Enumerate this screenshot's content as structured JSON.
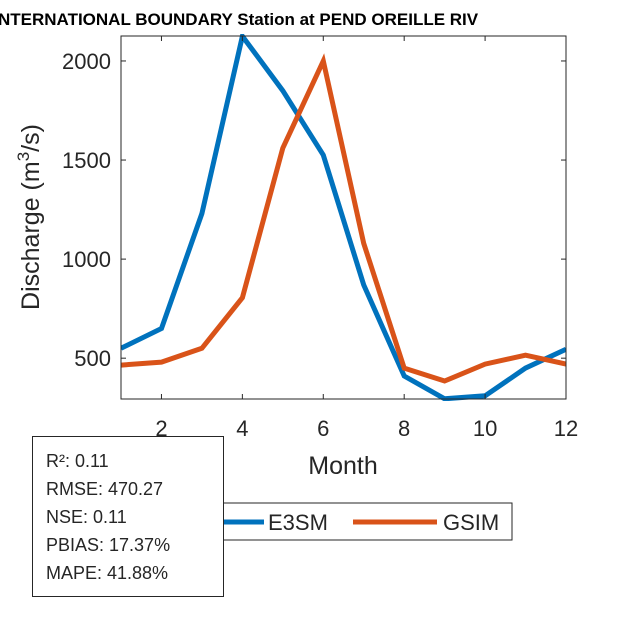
{
  "chart_data": {
    "type": "line",
    "title": "NTERNATIONAL BOUNDARY  Station at  PEND OREILLE RIV",
    "xlabel": "Month",
    "ylabel_main": "Discharge (m",
    "ylabel_sup": "3",
    "ylabel_tail": "/s)",
    "xlim": [
      1,
      12
    ],
    "ylim": [
      294,
      2126
    ],
    "xticks": [
      2,
      4,
      6,
      8,
      10,
      12
    ],
    "xtick_labels": [
      "2",
      "4",
      "6",
      "8",
      "10",
      "12"
    ],
    "yticks": [
      500,
      1000,
      1500,
      2000
    ],
    "ytick_labels": [
      "500",
      "1000",
      "1500",
      "2000"
    ],
    "x": [
      1,
      2,
      3,
      4,
      5,
      6,
      7,
      8,
      9,
      10,
      11,
      12
    ],
    "series": [
      {
        "name": "E3SM",
        "color": "#0072BD",
        "values": [
          550,
          650,
          1230,
          2125,
          1850,
          1525,
          870,
          410,
          295,
          310,
          450,
          545
        ]
      },
      {
        "name": "GSIM",
        "color": "#D95319",
        "values": [
          465,
          480,
          550,
          805,
          1560,
          2000,
          1080,
          450,
          385,
          470,
          515,
          470
        ]
      }
    ],
    "legend": {
      "position": "bottom",
      "orientation": "horizontal"
    },
    "grid": false
  },
  "stats": {
    "r2": "R²: 0.11",
    "rmse": "RMSE: 470.27",
    "nse": "NSE: 0.11",
    "pbias": "PBIAS: 17.37%",
    "mape": "MAPE: 41.88%"
  }
}
